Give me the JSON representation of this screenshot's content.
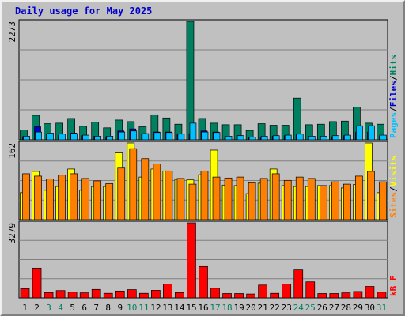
{
  "chart_data": {
    "type": "bar",
    "title": "Daily usage for May 2025",
    "categories": [
      "1",
      "2",
      "3",
      "4",
      "5",
      "6",
      "7",
      "8",
      "9",
      "10",
      "11",
      "12",
      "13",
      "14",
      "15",
      "16",
      "17",
      "18",
      "19",
      "20",
      "21",
      "22",
      "23",
      "24",
      "25",
      "26",
      "27",
      "28",
      "29",
      "30",
      "31"
    ],
    "weekend_days": [
      "3",
      "4",
      "10",
      "11",
      "17",
      "18",
      "24",
      "25",
      "31"
    ],
    "panels": [
      {
        "id": "hits-files-pages",
        "max_label": "2273",
        "ylim": [
          0,
          2273
        ],
        "legend": [
          "Pages",
          "/",
          "Files",
          "/",
          "Hits"
        ],
        "series": [
          {
            "name": "Hits",
            "color": "#008060",
            "values": [
              190,
              470,
              310,
              320,
              410,
              260,
              340,
              230,
              380,
              350,
              250,
              480,
              420,
              300,
              2273,
              410,
              320,
              290,
              290,
              180,
              310,
              280,
              280,
              800,
              290,
              300,
              350,
              360,
              630,
              320,
              300
            ]
          },
          {
            "name": "Files",
            "color": "#0000cc",
            "values": [
              60,
              250,
              110,
              90,
              130,
              80,
              70,
              60,
              170,
              210,
              110,
              150,
              150,
              100,
              120,
              170,
              150,
              60,
              80,
              40,
              50,
              70,
              80,
              110,
              60,
              60,
              60,
              80,
              150,
              150,
              80
            ]
          },
          {
            "name": "Pages",
            "color": "#00c0ff",
            "values": [
              70,
              150,
              130,
              110,
              120,
              90,
              70,
              70,
              150,
              170,
              120,
              140,
              140,
              110,
              320,
              150,
              140,
              70,
              80,
              50,
              70,
              80,
              90,
              110,
              70,
              70,
              80,
              90,
              270,
              270,
              90
            ]
          }
        ]
      },
      {
        "id": "visits-sites",
        "max_label": "162",
        "ylim": [
          0,
          162
        ],
        "legend": [
          "Sites",
          "/",
          "Visits"
        ],
        "series": [
          {
            "name": "Visits",
            "color": "#ffff00",
            "values": [
              57,
              102,
              62,
              70,
              107,
              62,
              70,
              70,
              141,
              162,
              90,
              107,
              103,
              85,
              84,
              95,
              147,
              73,
              72,
              55,
              77,
              107,
              72,
              70,
              70,
              72,
              72,
              67,
              74,
              162,
              57
            ]
          },
          {
            "name": "Sites",
            "color": "#ff8000",
            "values": [
              97,
              92,
              86,
              94,
              97,
              87,
              82,
              76,
              109,
              150,
              129,
              118,
              103,
              87,
              75,
              103,
              90,
              88,
              90,
              78,
              87,
              97,
              83,
              90,
              87,
              72,
              80,
              75,
              92,
              102,
              80
            ]
          }
        ]
      },
      {
        "id": "kbytes",
        "max_label": "3279",
        "ylim": [
          0,
          3279
        ],
        "legend": [
          "kB F"
        ],
        "series": [
          {
            "name": "kB F",
            "color": "#ff0000",
            "values": [
              400,
              1300,
              230,
              320,
              250,
              220,
              370,
              200,
              300,
              360,
              200,
              330,
              600,
              230,
              3279,
              1370,
              420,
              190,
              190,
              170,
              560,
              200,
              600,
              1220,
              700,
              190,
              190,
              220,
              280,
              500,
              250
            ]
          }
        ]
      }
    ]
  }
}
